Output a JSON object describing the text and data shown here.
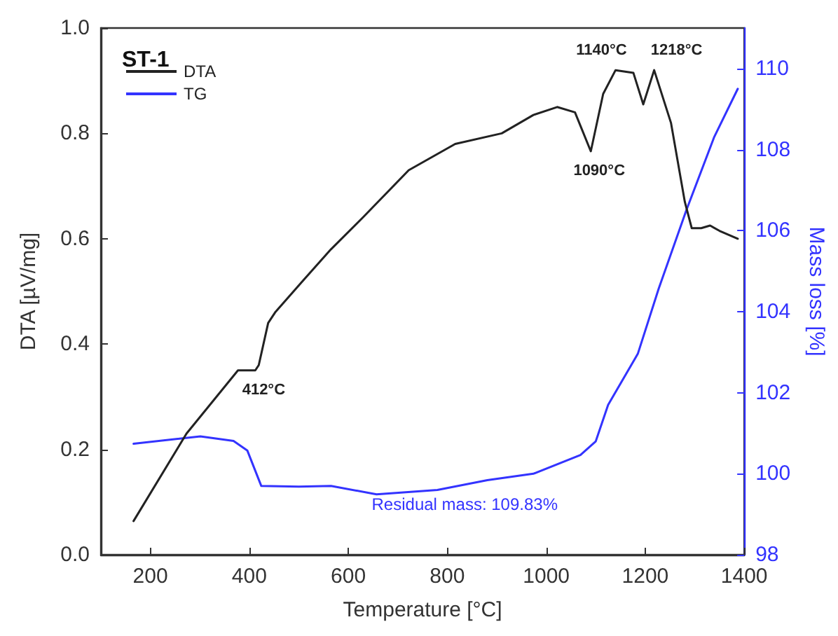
{
  "chart_data": {
    "type": "line",
    "title": "ST-1",
    "xlabel": "Temperature [°C]",
    "ylabel": "DTA [µV/mg]",
    "y2label": "Mass loss [%]",
    "xlim": [
      100,
      1400
    ],
    "xticks": [
      200,
      400,
      600,
      800,
      1000,
      1200,
      1400
    ],
    "ylim": [
      0,
      1
    ],
    "yticks": [
      {
        "value": 0,
        "label": "0.0"
      },
      {
        "value": 0.2,
        "label": "0.2"
      },
      {
        "value": 0.4,
        "label": "0.4"
      },
      {
        "value": 0.6,
        "label": "0.6"
      },
      {
        "value": 0.8,
        "label": "0.8"
      },
      {
        "value": 1,
        "label": "1.0"
      }
    ],
    "y2lim": [
      98,
      111
    ],
    "y2ticks": [
      98,
      100,
      102,
      104,
      106,
      108,
      110
    ],
    "legend": "top left",
    "grid": false,
    "marker": "none",
    "line_style": "solid",
    "series": [
      {
        "name": "DTA",
        "color": "#222222",
        "x": [
          166,
          273,
          377,
          412,
          419,
          438,
          452,
          508,
          565,
          629,
          722,
          816,
          910,
          974,
          1022,
          1058,
          1090,
          1115,
          1140,
          1176,
          1196,
          1218,
          1252,
          1280,
          1294,
          1313,
          1331,
          1350,
          1387
        ],
        "values": [
          0.064,
          0.23,
          0.35,
          0.35,
          0.36,
          0.44,
          0.46,
          0.52,
          0.58,
          0.64,
          0.73,
          0.78,
          0.8,
          0.835,
          0.85,
          0.84,
          0.766,
          0.875,
          0.92,
          0.915,
          0.855,
          0.92,
          0.82,
          0.67,
          0.62,
          0.62,
          0.625,
          0.615,
          0.6
        ]
      },
      {
        "name": "TG",
        "color": "#3333ff",
        "axis": "y2",
        "x": [
          166,
          301,
          368,
          396,
          424,
          500,
          565,
          657,
          780,
          881,
          974,
          1069,
          1100,
          1125,
          1185,
          1227,
          1283,
          1339,
          1387
        ],
        "values": [
          100.74,
          100.92,
          100.81,
          100.57,
          99.7,
          99.68,
          99.7,
          99.49,
          99.6,
          99.84,
          100.0,
          100.46,
          100.8,
          101.7,
          102.96,
          104.56,
          106.5,
          108.3,
          109.5
        ]
      }
    ],
    "annotations": [
      {
        "text": "412°C",
        "x": 412,
        "y": 0.35
      },
      {
        "text": "1090°C",
        "x": 1090,
        "y": 0.766
      },
      {
        "text": "1140°C",
        "x": 1140,
        "y": 0.92
      },
      {
        "text": "1218°C",
        "x": 1218,
        "y": 0.92
      },
      "Residual mass: 109.83%"
    ]
  }
}
